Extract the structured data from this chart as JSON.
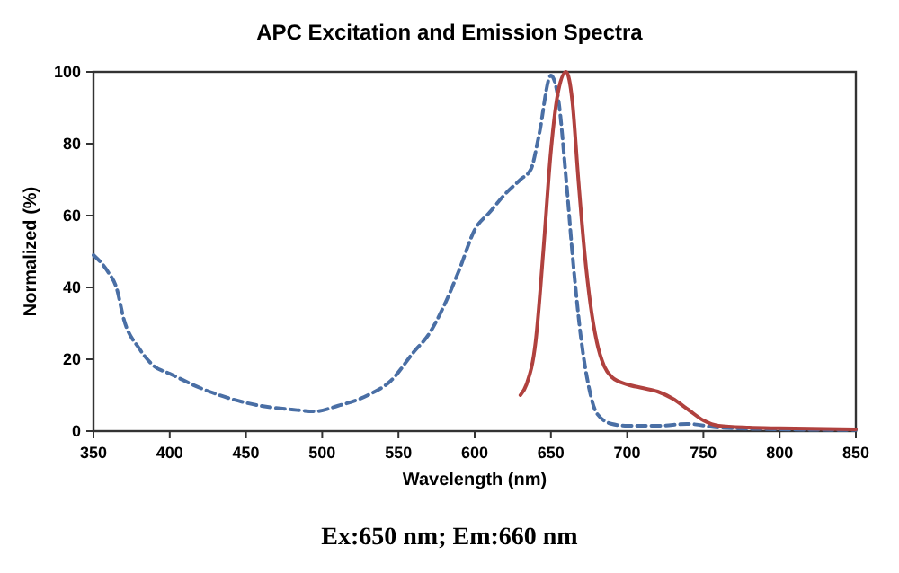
{
  "chart_data": {
    "type": "line",
    "title": "APC Excitation and Emission Spectra",
    "xlabel": "Wavelength (nm)",
    "ylabel": "Normalized (%)",
    "annotations": [
      "Ex:650 nm; Em:660 nm"
    ],
    "xlim": [
      350,
      850
    ],
    "xticks": [
      350,
      400,
      450,
      500,
      550,
      600,
      650,
      700,
      750,
      800,
      850
    ],
    "ylim": [
      0,
      100
    ],
    "yticks": [
      0,
      20,
      40,
      60,
      80,
      100
    ],
    "grid": false,
    "series": [
      {
        "color": "#4a6fa5",
        "line_style": "dashed",
        "x": [
          350,
          360,
          365,
          370,
          380,
          390,
          400,
          420,
          440,
          460,
          480,
          495,
          510,
          530,
          545,
          560,
          570,
          580,
          590,
          600,
          610,
          620,
          630,
          637,
          642,
          650,
          655,
          660,
          665,
          670,
          675,
          680,
          690,
          700,
          720,
          740,
          760,
          800,
          850
        ],
        "values": [
          49,
          44,
          40,
          31,
          23,
          18,
          16,
          12,
          9,
          7,
          6,
          5.5,
          7,
          10,
          14,
          22,
          27,
          35,
          45,
          56,
          61,
          66,
          70,
          73,
          82,
          99,
          92,
          70,
          45,
          25,
          12,
          5,
          2,
          1.5,
          1.5,
          2,
          1,
          0.5,
          0.3
        ]
      },
      {
        "color": "#b0413e",
        "line_style": "solid",
        "x": [
          630,
          634,
          640,
          645,
          650,
          655,
          660,
          664,
          668,
          672,
          676,
          680,
          685,
          690,
          700,
          710,
          720,
          730,
          740,
          750,
          760,
          780,
          800,
          850
        ],
        "values": [
          10,
          13,
          25,
          50,
          78,
          95,
          100,
          92,
          70,
          50,
          35,
          25,
          18,
          15,
          13,
          12,
          11,
          9,
          6,
          3,
          1.5,
          1,
          0.8,
          0.5
        ]
      }
    ]
  }
}
